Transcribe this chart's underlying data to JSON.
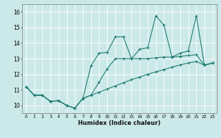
{
  "xlabel": "Humidex (Indice chaleur)",
  "background_color": "#cce9e9",
  "grid_color": "#ffffff",
  "line_color": "#1a7a6e",
  "x": [
    0,
    1,
    2,
    3,
    4,
    5,
    6,
    7,
    8,
    9,
    10,
    11,
    12,
    13,
    14,
    15,
    16,
    17,
    18,
    19,
    20,
    21,
    22,
    23
  ],
  "y_bottom": [
    11.2,
    10.65,
    10.65,
    10.25,
    10.3,
    10.0,
    9.82,
    10.45,
    10.65,
    10.85,
    11.05,
    11.25,
    11.45,
    11.65,
    11.82,
    12.0,
    12.15,
    12.3,
    12.45,
    12.6,
    12.72,
    12.82,
    12.58,
    12.72
  ],
  "y_mid": [
    11.2,
    10.65,
    10.65,
    10.25,
    10.3,
    10.0,
    9.82,
    10.45,
    10.65,
    11.5,
    12.35,
    13.0,
    13.0,
    13.0,
    13.0,
    13.0,
    13.05,
    13.1,
    13.1,
    13.15,
    13.2,
    13.25,
    12.58,
    12.72
  ],
  "y_top": [
    11.2,
    10.65,
    10.65,
    10.25,
    10.3,
    10.0,
    9.82,
    10.45,
    12.55,
    13.35,
    13.4,
    14.4,
    14.4,
    13.0,
    13.6,
    13.7,
    15.75,
    15.15,
    13.1,
    13.35,
    13.5,
    15.75,
    12.58,
    12.72
  ],
  "ylim": [
    9.5,
    16.5
  ],
  "yticks": [
    10,
    11,
    12,
    13,
    14,
    15,
    16
  ],
  "xticks": [
    0,
    1,
    2,
    3,
    4,
    5,
    6,
    7,
    8,
    9,
    10,
    11,
    12,
    13,
    14,
    15,
    16,
    17,
    18,
    19,
    20,
    21,
    22,
    23
  ],
  "figsize": [
    3.2,
    2.0
  ],
  "dpi": 100
}
